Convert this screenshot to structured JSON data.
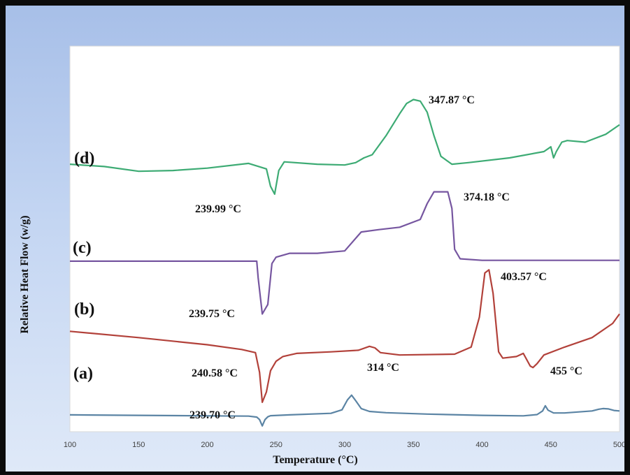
{
  "chart_data": {
    "type": "line",
    "title": "",
    "xlabel": "Temperature (°C)",
    "ylabel": "Relative Heat Flow (w/g)",
    "xlim": [
      100,
      500
    ],
    "x_ticks": [
      "100",
      "150",
      "200",
      "250",
      "300",
      "350",
      "400",
      "450",
      "500"
    ],
    "grid": false,
    "colors": {
      "a": "#5b84a4",
      "b": "#b2413a",
      "c": "#7656a0",
      "d": "#3dab74"
    },
    "series": [
      {
        "name": "(a)",
        "color_key": "a",
        "x": [
          100,
          150,
          200,
          230,
          236,
          238,
          240,
          242,
          244,
          246,
          260,
          290,
          298,
          302,
          305,
          308,
          312,
          318,
          330,
          360,
          400,
          430,
          440,
          444,
          446,
          448,
          452,
          460,
          480,
          485,
          488,
          492,
          496,
          500
        ],
        "y": [
          0.3,
          0.27,
          0.24,
          0.22,
          0.16,
          0.0,
          -0.4,
          0.0,
          0.18,
          0.25,
          0.3,
          0.4,
          0.62,
          1.25,
          1.55,
          1.2,
          0.7,
          0.52,
          0.44,
          0.35,
          0.27,
          0.24,
          0.32,
          0.55,
          0.88,
          0.6,
          0.42,
          0.42,
          0.55,
          0.66,
          0.7,
          0.68,
          0.58,
          0.55
        ]
      },
      {
        "name": "(b)",
        "color_key": "b",
        "x": [
          100,
          150,
          200,
          225,
          235,
          238,
          240,
          243,
          246,
          250,
          255,
          265,
          290,
          310,
          318,
          322,
          326,
          340,
          380,
          392,
          398,
          402,
          405,
          408,
          412,
          415,
          425,
          430,
          435,
          437,
          440,
          445,
          460,
          480,
          495,
          500
        ],
        "y": [
          5.6,
          5.2,
          4.75,
          4.45,
          4.25,
          3.0,
          1.1,
          1.75,
          3.1,
          3.7,
          4.0,
          4.2,
          4.3,
          4.4,
          4.65,
          4.55,
          4.25,
          4.1,
          4.15,
          4.6,
          6.5,
          9.3,
          9.5,
          8.0,
          4.3,
          3.9,
          4.0,
          4.2,
          3.4,
          3.3,
          3.55,
          4.1,
          4.6,
          5.2,
          6.1,
          6.7
        ]
      },
      {
        "name": "(c)",
        "color_key": "c",
        "x": [
          100,
          150,
          200,
          230,
          236,
          237,
          240,
          244,
          247,
          250,
          260,
          280,
          300,
          312,
          325,
          340,
          355,
          360,
          365,
          375,
          378,
          380,
          384,
          400,
          450,
          500
        ],
        "y": [
          10.05,
          10.05,
          10.05,
          10.05,
          10.05,
          9.0,
          6.7,
          7.3,
          9.9,
          10.3,
          10.55,
          10.55,
          10.7,
          11.9,
          12.05,
          12.2,
          12.7,
          13.7,
          14.45,
          14.45,
          13.4,
          10.8,
          10.2,
          10.1,
          10.1,
          10.1
        ]
      },
      {
        "name": "(d)",
        "color_key": "d",
        "x": [
          100,
          125,
          150,
          175,
          200,
          230,
          243,
          246,
          249,
          252,
          256,
          280,
          300,
          308,
          314,
          320,
          330,
          340,
          345,
          350,
          355,
          360,
          365,
          370,
          378,
          390,
          420,
          445,
          450,
          452,
          454,
          458,
          462,
          475,
          490,
          500
        ],
        "y": [
          16.2,
          16.05,
          15.75,
          15.8,
          15.95,
          16.25,
          15.9,
          14.8,
          14.3,
          15.8,
          16.35,
          16.2,
          16.15,
          16.3,
          16.6,
          16.8,
          18.0,
          19.4,
          20.05,
          20.3,
          20.2,
          19.5,
          18.0,
          16.7,
          16.2,
          16.3,
          16.6,
          17.0,
          17.3,
          16.6,
          17.0,
          17.6,
          17.7,
          17.6,
          18.1,
          18.7
        ]
      }
    ],
    "annotations": [
      {
        "key": "d_min",
        "text": "239.99 °C",
        "series": "(d)"
      },
      {
        "key": "d_max",
        "text": "347.87 °C",
        "series": "(d)"
      },
      {
        "key": "c_min",
        "text": "239.75 °C",
        "series": "(c)"
      },
      {
        "key": "c_max",
        "text": "374.18 °C",
        "series": "(c)"
      },
      {
        "key": "b_min",
        "text": "240.58 °C",
        "series": "(b)"
      },
      {
        "key": "b_max",
        "text": "403.57 °C",
        "series": "(b)"
      },
      {
        "key": "a_min",
        "text": "239.70 °C",
        "series": "(a)"
      },
      {
        "key": "a_314",
        "text": "314 °C",
        "series": "(a)"
      },
      {
        "key": "a_455",
        "text": "455 °C",
        "series": "(a)"
      }
    ]
  }
}
